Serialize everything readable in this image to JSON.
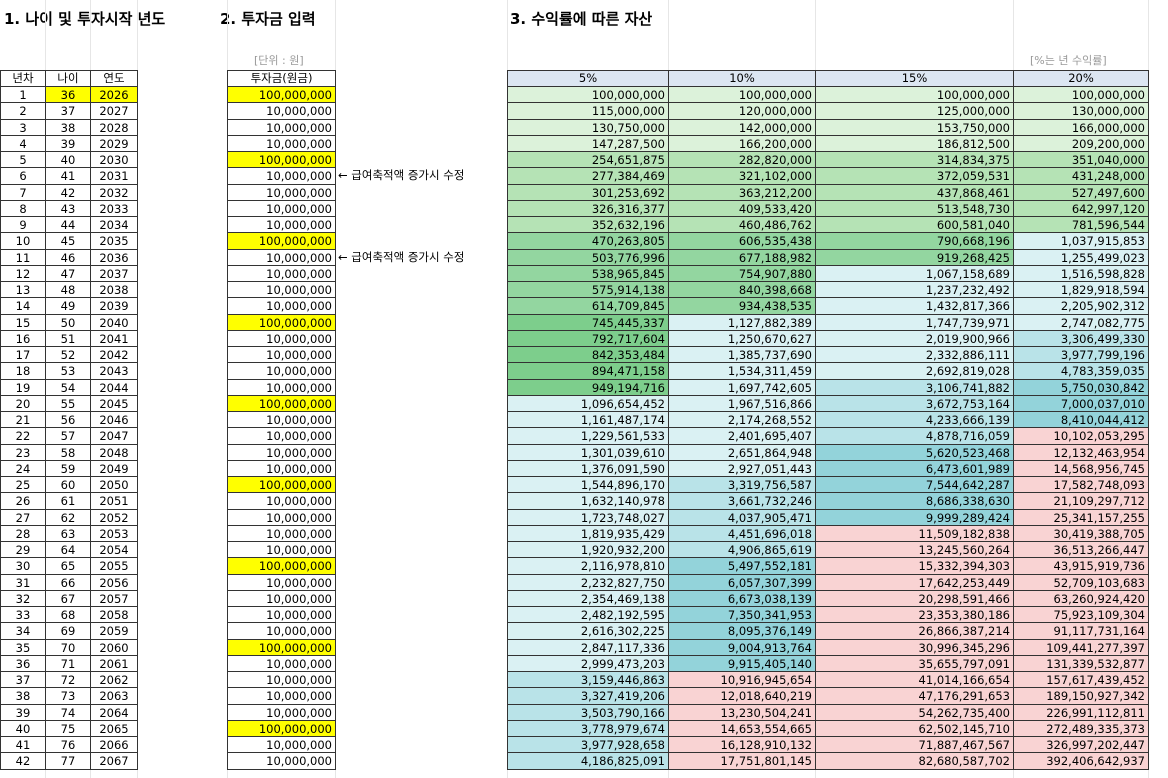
{
  "headings": [
    "1. 나이 및 투자시작 년도",
    "2. 투자금 입력",
    "3. 수익률에 따른 자산"
  ],
  "units": {
    "amount": "[단위 : 원]",
    "rate": "[%는 년 수익률]"
  },
  "notes": [
    "← 급여축적액 증가시 수정",
    "← 급여축적액 증가시 수정"
  ],
  "table": {
    "header": [
      "년차",
      "나이",
      "연도",
      "투자금(원금)",
      "5%",
      "10%",
      "15%",
      "20%"
    ],
    "rows": [
      [
        1,
        36,
        2026,
        "100,000,000",
        "100,000,000",
        "100,000,000",
        "100,000,000",
        "100,000,000"
      ],
      [
        2,
        37,
        2027,
        "10,000,000",
        "115,000,000",
        "120,000,000",
        "125,000,000",
        "130,000,000"
      ],
      [
        3,
        38,
        2028,
        "10,000,000",
        "130,750,000",
        "142,000,000",
        "153,750,000",
        "166,000,000"
      ],
      [
        4,
        39,
        2029,
        "10,000,000",
        "147,287,500",
        "166,200,000",
        "186,812,500",
        "209,200,000"
      ],
      [
        5,
        40,
        2030,
        "100,000,000",
        "254,651,875",
        "282,820,000",
        "314,834,375",
        "351,040,000"
      ],
      [
        6,
        41,
        2031,
        "10,000,000",
        "277,384,469",
        "321,102,000",
        "372,059,531",
        "431,248,000"
      ],
      [
        7,
        42,
        2032,
        "10,000,000",
        "301,253,692",
        "363,212,200",
        "437,868,461",
        "527,497,600"
      ],
      [
        8,
        43,
        2033,
        "10,000,000",
        "326,316,377",
        "409,533,420",
        "513,548,730",
        "642,997,120"
      ],
      [
        9,
        44,
        2034,
        "10,000,000",
        "352,632,196",
        "460,486,762",
        "600,581,040",
        "781,596,544"
      ],
      [
        10,
        45,
        2035,
        "100,000,000",
        "470,263,805",
        "606,535,438",
        "790,668,196",
        "1,037,915,853"
      ],
      [
        11,
        46,
        2036,
        "10,000,000",
        "503,776,996",
        "677,188,982",
        "919,268,425",
        "1,255,499,023"
      ],
      [
        12,
        47,
        2037,
        "10,000,000",
        "538,965,845",
        "754,907,880",
        "1,067,158,689",
        "1,516,598,828"
      ],
      [
        13,
        48,
        2038,
        "10,000,000",
        "575,914,138",
        "840,398,668",
        "1,237,232,492",
        "1,829,918,594"
      ],
      [
        14,
        49,
        2039,
        "10,000,000",
        "614,709,845",
        "934,438,535",
        "1,432,817,366",
        "2,205,902,312"
      ],
      [
        15,
        50,
        2040,
        "100,000,000",
        "745,445,337",
        "1,127,882,389",
        "1,747,739,971",
        "2,747,082,775"
      ],
      [
        16,
        51,
        2041,
        "10,000,000",
        "792,717,604",
        "1,250,670,627",
        "2,019,900,966",
        "3,306,499,330"
      ],
      [
        17,
        52,
        2042,
        "10,000,000",
        "842,353,484",
        "1,385,737,690",
        "2,332,886,111",
        "3,977,799,196"
      ],
      [
        18,
        53,
        2043,
        "10,000,000",
        "894,471,158",
        "1,534,311,459",
        "2,692,819,028",
        "4,783,359,035"
      ],
      [
        19,
        54,
        2044,
        "10,000,000",
        "949,194,716",
        "1,697,742,605",
        "3,106,741,882",
        "5,750,030,842"
      ],
      [
        20,
        55,
        2045,
        "100,000,000",
        "1,096,654,452",
        "1,967,516,866",
        "3,672,753,164",
        "7,000,037,010"
      ],
      [
        21,
        56,
        2046,
        "10,000,000",
        "1,161,487,174",
        "2,174,268,552",
        "4,233,666,139",
        "8,410,044,412"
      ],
      [
        22,
        57,
        2047,
        "10,000,000",
        "1,229,561,533",
        "2,401,695,407",
        "4,878,716,059",
        "10,102,053,295"
      ],
      [
        23,
        58,
        2048,
        "10,000,000",
        "1,301,039,610",
        "2,651,864,948",
        "5,620,523,468",
        "12,132,463,954"
      ],
      [
        24,
        59,
        2049,
        "10,000,000",
        "1,376,091,590",
        "2,927,051,443",
        "6,473,601,989",
        "14,568,956,745"
      ],
      [
        25,
        60,
        2050,
        "100,000,000",
        "1,544,896,170",
        "3,319,756,587",
        "7,544,642,287",
        "17,582,748,093"
      ],
      [
        26,
        61,
        2051,
        "10,000,000",
        "1,632,140,978",
        "3,661,732,246",
        "8,686,338,630",
        "21,109,297,712"
      ],
      [
        27,
        62,
        2052,
        "10,000,000",
        "1,723,748,027",
        "4,037,905,471",
        "9,999,289,424",
        "25,341,157,255"
      ],
      [
        28,
        63,
        2053,
        "10,000,000",
        "1,819,935,429",
        "4,451,696,018",
        "11,509,182,838",
        "30,419,388,705"
      ],
      [
        29,
        64,
        2054,
        "10,000,000",
        "1,920,932,200",
        "4,906,865,619",
        "13,245,560,264",
        "36,513,266,447"
      ],
      [
        30,
        65,
        2055,
        "100,000,000",
        "2,116,978,810",
        "5,497,552,181",
        "15,332,394,303",
        "43,915,919,736"
      ],
      [
        31,
        66,
        2056,
        "10,000,000",
        "2,232,827,750",
        "6,057,307,399",
        "17,642,253,449",
        "52,709,103,683"
      ],
      [
        32,
        67,
        2057,
        "10,000,000",
        "2,354,469,138",
        "6,673,038,139",
        "20,298,591,466",
        "63,260,924,420"
      ],
      [
        33,
        68,
        2058,
        "10,000,000",
        "2,482,192,595",
        "7,350,341,953",
        "23,353,380,186",
        "75,923,109,304"
      ],
      [
        34,
        69,
        2059,
        "10,000,000",
        "2,616,302,225",
        "8,095,376,149",
        "26,866,387,214",
        "91,117,731,164"
      ],
      [
        35,
        70,
        2060,
        "100,000,000",
        "2,847,117,336",
        "9,004,913,764",
        "30,996,345,296",
        "109,441,277,397"
      ],
      [
        36,
        71,
        2061,
        "10,000,000",
        "2,999,473,203",
        "9,915,405,140",
        "35,655,797,091",
        "131,339,532,877"
      ],
      [
        37,
        72,
        2062,
        "10,000,000",
        "3,159,446,863",
        "10,916,945,654",
        "41,014,166,654",
        "157,617,439,452"
      ],
      [
        38,
        73,
        2063,
        "10,000,000",
        "3,327,419,206",
        "12,018,640,219",
        "47,176,291,653",
        "189,150,927,342"
      ],
      [
        39,
        74,
        2064,
        "10,000,000",
        "3,503,790,166",
        "13,230,504,241",
        "54,262,735,400",
        "226,991,112,811"
      ],
      [
        40,
        75,
        2065,
        "100,000,000",
        "3,778,979,674",
        "14,653,554,665",
        "62,502,145,710",
        "272,489,335,373"
      ],
      [
        41,
        76,
        2066,
        "10,000,000",
        "3,977,928,658",
        "16,128,910,132",
        "71,887,467,567",
        "326,997,202,447"
      ],
      [
        42,
        77,
        2067,
        "10,000,000",
        "4,186,825,091",
        "17,751,801,145",
        "82,680,587,702",
        "392,406,642,937"
      ]
    ]
  }
}
